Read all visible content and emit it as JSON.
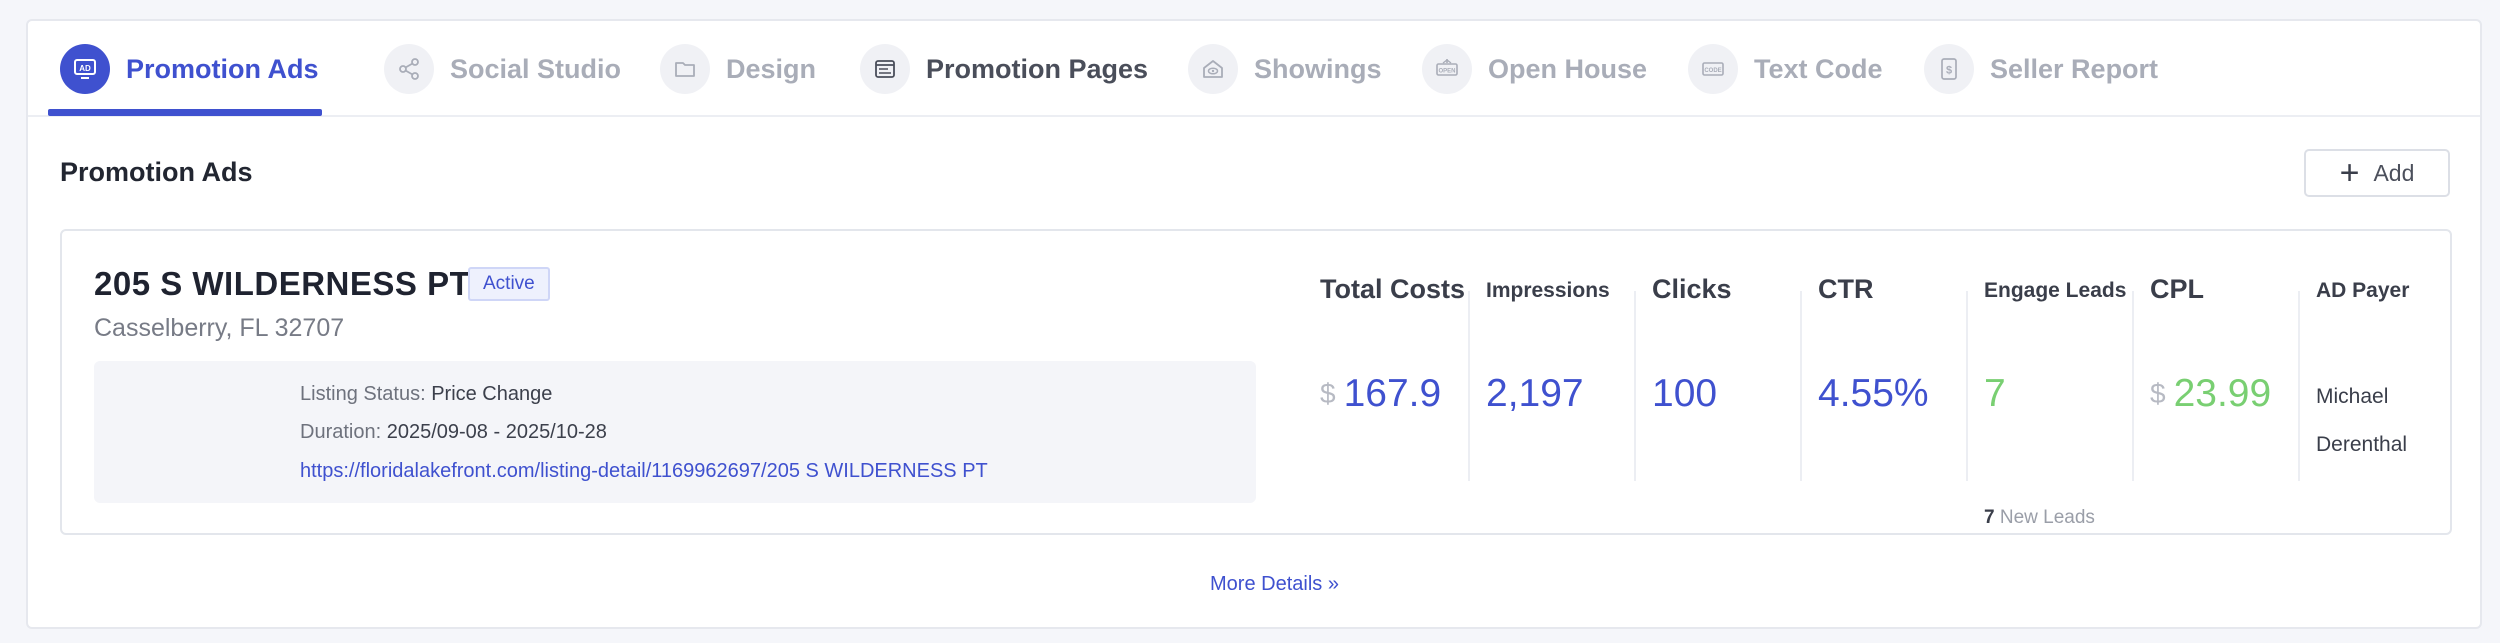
{
  "tabs": [
    {
      "label": "Promotion Ads",
      "icon": "ad-icon"
    },
    {
      "label": "Social Studio",
      "icon": "share-icon"
    },
    {
      "label": "Design",
      "icon": "folder-icon"
    },
    {
      "label": "Promotion Pages",
      "icon": "browser-icon"
    },
    {
      "label": "Showings",
      "icon": "eye-house-icon"
    },
    {
      "label": "Open House",
      "icon": "open-sign-icon"
    },
    {
      "label": "Text Code",
      "icon": "code-icon"
    },
    {
      "label": "Seller Report",
      "icon": "dollar-doc-icon"
    }
  ],
  "section": {
    "title": "Promotion Ads",
    "add_label": "Add"
  },
  "listing": {
    "address": "205 S WILDERNESS PT",
    "status_badge": "Active",
    "city": "Casselberry, FL 32707",
    "listing_status_key": "Listing Status: ",
    "listing_status_value": "Price Change",
    "duration_key": "Duration: ",
    "duration_value": "2025/09-08 - 2025/10-28",
    "url": "https://floridalakefront.com/listing-detail/1169962697/205 S WILDERNESS PT"
  },
  "metrics": {
    "total_costs": {
      "label": "Total Costs",
      "currency": "$",
      "value": "167.9"
    },
    "impressions": {
      "label": "Impressions",
      "value": "2,197"
    },
    "clicks": {
      "label": "Clicks",
      "value": "100"
    },
    "ctr": {
      "label": "CTR",
      "value": "4.55%"
    },
    "engage_leads": {
      "label": "Engage Leads",
      "value": "7",
      "new_count": "7",
      "new_label": " New Leads"
    },
    "cpl": {
      "label": "CPL",
      "currency": "$",
      "value": "23.99"
    },
    "ad_payer": {
      "label": "AD Payer",
      "value": "Michael Derenthal"
    }
  },
  "more_details": "More Details »",
  "colors": {
    "accent": "#3f51cf",
    "green": "#79cf72",
    "muted": "#a9adb8"
  }
}
